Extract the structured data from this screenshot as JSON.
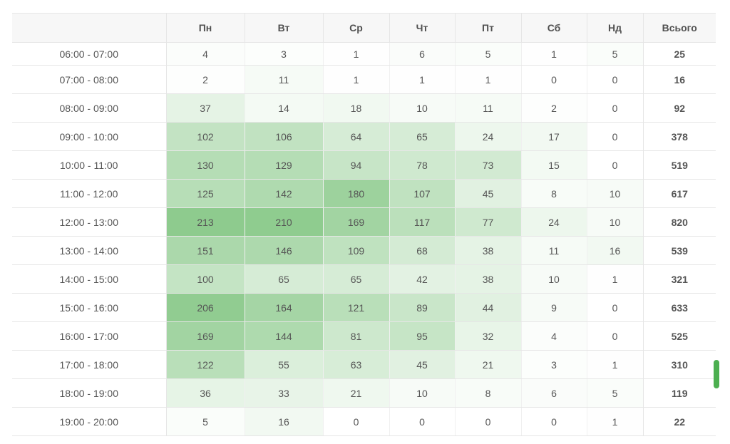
{
  "table": {
    "columns": [
      "",
      "Пн",
      "Вт",
      "Ср",
      "Чт",
      "Пт",
      "Сб",
      "Нд",
      "Всього"
    ],
    "rows": [
      {
        "time": "06:00 - 07:00",
        "values": [
          4,
          3,
          1,
          6,
          5,
          1,
          5
        ],
        "total": 25
      },
      {
        "time": "07:00 - 08:00",
        "values": [
          2,
          11,
          1,
          1,
          1,
          0,
          0
        ],
        "total": 16
      },
      {
        "time": "08:00 - 09:00",
        "values": [
          37,
          14,
          18,
          10,
          11,
          2,
          0
        ],
        "total": 92
      },
      {
        "time": "09:00 - 10:00",
        "values": [
          102,
          106,
          64,
          65,
          24,
          17,
          0
        ],
        "total": 378
      },
      {
        "time": "10:00 - 11:00",
        "values": [
          130,
          129,
          94,
          78,
          73,
          15,
          0
        ],
        "total": 519
      },
      {
        "time": "11:00 - 12:00",
        "values": [
          125,
          142,
          180,
          107,
          45,
          8,
          10
        ],
        "total": 617
      },
      {
        "time": "12:00 - 13:00",
        "values": [
          213,
          210,
          169,
          117,
          77,
          24,
          10
        ],
        "total": 820
      },
      {
        "time": "13:00 - 14:00",
        "values": [
          151,
          146,
          109,
          68,
          38,
          11,
          16
        ],
        "total": 539
      },
      {
        "time": "14:00 - 15:00",
        "values": [
          100,
          65,
          65,
          42,
          38,
          10,
          1
        ],
        "total": 321
      },
      {
        "time": "15:00 - 16:00",
        "values": [
          206,
          164,
          121,
          89,
          44,
          9,
          0
        ],
        "total": 633
      },
      {
        "time": "16:00 - 17:00",
        "values": [
          169,
          144,
          81,
          95,
          32,
          4,
          0
        ],
        "total": 525
      },
      {
        "time": "17:00 - 18:00",
        "values": [
          122,
          55,
          63,
          45,
          21,
          3,
          1
        ],
        "total": 310
      },
      {
        "time": "18:00 - 19:00",
        "values": [
          36,
          33,
          21,
          10,
          8,
          6,
          5
        ],
        "total": 119
      },
      {
        "time": "19:00 - 20:00",
        "values": [
          5,
          16,
          0,
          0,
          0,
          0,
          1
        ],
        "total": 22
      }
    ]
  },
  "colors": {
    "heat_low": "#ffffff",
    "heat_high": "#8ecb8e",
    "header_bg": "#f7f7f7",
    "accent": "#4caf50"
  }
}
